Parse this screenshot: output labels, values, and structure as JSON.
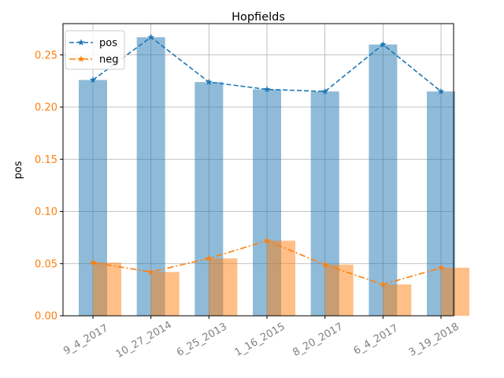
{
  "chart_data": {
    "type": "bar",
    "title": "Hopfields",
    "xlabel": "",
    "ylabel": "pos",
    "ylim": [
      0,
      0.28
    ],
    "yticks": [
      "0.00",
      "0.05",
      "0.10",
      "0.15",
      "0.20",
      "0.25"
    ],
    "ytick_color": "#ff7f0e",
    "xtick_color": "#808080",
    "grid": true,
    "legend_position": "top-left",
    "categories": [
      "9_4_2017",
      "10_27_2014",
      "6_25_2013",
      "1_16_2015",
      "8_20_2017",
      "6_4_2017",
      "3_19_2018"
    ],
    "series": [
      {
        "name": "pos",
        "values": [
          0.226,
          0.267,
          0.224,
          0.217,
          0.215,
          0.26,
          0.215
        ],
        "bar_color": "#1f77b4",
        "line_color": "#1f77b4",
        "line_style": "dashed",
        "marker": "star"
      },
      {
        "name": "neg",
        "values": [
          0.051,
          0.042,
          0.055,
          0.072,
          0.049,
          0.03,
          0.046
        ],
        "bar_color": "#ff7f0e",
        "line_color": "#ff7f0e",
        "line_style": "dashdot",
        "marker": "star"
      }
    ]
  }
}
